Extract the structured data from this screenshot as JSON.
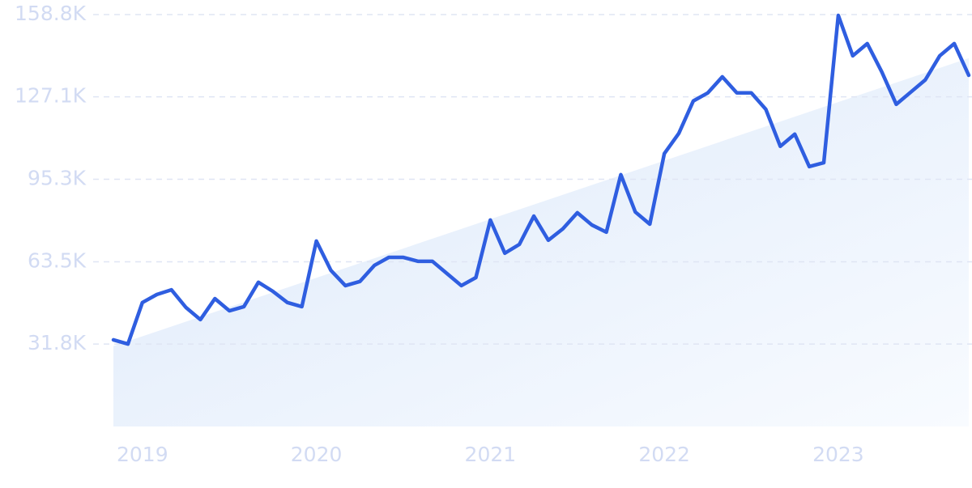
{
  "chart_data": {
    "type": "line",
    "x": [
      2018.8333,
      2018.9167,
      2019,
      2019.0833,
      2019.1667,
      2019.25,
      2019.3333,
      2019.4167,
      2019.5,
      2019.5833,
      2019.6667,
      2019.75,
      2019.8333,
      2019.9167,
      2020,
      2020.0833,
      2020.1667,
      2020.25,
      2020.3333,
      2020.4167,
      2020.5,
      2020.5833,
      2020.6667,
      2020.75,
      2020.8333,
      2020.9167,
      2021,
      2021.0833,
      2021.1667,
      2021.25,
      2021.3333,
      2021.4167,
      2021.5,
      2021.5833,
      2021.6667,
      2021.75,
      2021.8333,
      2021.9167,
      2022,
      2022.0833,
      2022.1667,
      2022.25,
      2022.3333,
      2022.4167,
      2022.5,
      2022.5833,
      2022.6667,
      2022.75,
      2022.8333,
      2022.9167,
      2023,
      2023.0833,
      2023.1667,
      2023.25,
      2023.3333,
      2023.4167,
      2023.5,
      2023.5833,
      2023.6667,
      2023.75
    ],
    "series": [
      {
        "color": "#2f5ee0",
        "values": [
          33400,
          31800,
          47800,
          50900,
          52700,
          45900,
          41200,
          49300,
          44600,
          46200,
          55600,
          52100,
          47800,
          46200,
          71500,
          60200,
          54300,
          55900,
          62100,
          65200,
          65200,
          63700,
          63700,
          59000,
          54300,
          57400,
          79600,
          66800,
          70200,
          81100,
          71800,
          76200,
          82400,
          77700,
          74900,
          97100,
          82700,
          78000,
          105200,
          113000,
          125500,
          128600,
          134800,
          128600,
          128600,
          122300,
          108000,
          112700,
          100200,
          101700,
          158500,
          142900,
          147600,
          136700,
          124200,
          128900,
          133600,
          142900,
          147600,
          135400
        ]
      }
    ],
    "trend": [
      31000,
      142000
    ],
    "xlim": [
      2018.8333,
      2023.75
    ],
    "xticks": [
      2019,
      2020,
      2021,
      2022,
      2023
    ],
    "ylim": [
      0,
      158800
    ],
    "yticks": [
      {
        "value": 31800,
        "label": "31.8K"
      },
      {
        "value": 63500,
        "label": "63.5K"
      },
      {
        "value": 95300,
        "label": "95.3K"
      },
      {
        "value": 127100,
        "label": "127.1K"
      },
      {
        "value": 158800,
        "label": "158.8K"
      }
    ],
    "grid": true
  }
}
